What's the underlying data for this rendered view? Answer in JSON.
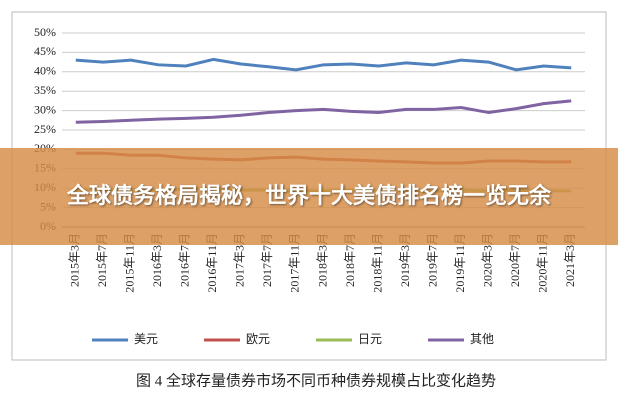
{
  "chart_data": {
    "type": "line",
    "categories": [
      "2015年3月",
      "2015年7月",
      "2015年11月",
      "2016年3月",
      "2016年7月",
      "2016年11月",
      "2017年3月",
      "2017年7月",
      "2017年11月",
      "2018年3月",
      "2018年7月",
      "2018年11月",
      "2019年3月",
      "2019年7月",
      "2019年11月",
      "2020年3月",
      "2020年7月",
      "2020年11月",
      "2021年3月"
    ],
    "series": [
      {
        "name": "美元",
        "color": "#4f81bd",
        "values": [
          43,
          42.5,
          43,
          41.8,
          41.5,
          43.2,
          42,
          41.3,
          40.5,
          41.8,
          42,
          41.5,
          42.3,
          41.8,
          43,
          42.5,
          40.5,
          41.5,
          41
        ]
      },
      {
        "name": "欧元",
        "color": "#c0504d",
        "values": [
          19,
          19,
          18.5,
          18.5,
          17.8,
          17.5,
          17.3,
          17.8,
          18,
          17.5,
          17.3,
          17,
          16.8,
          16.5,
          16.5,
          17,
          17,
          16.8,
          16.8
        ]
      },
      {
        "name": "日元",
        "color": "#9bbb59",
        "values": [
          9.5,
          9.8,
          9.5,
          9.5,
          9.8,
          9.8,
          9.5,
          9.5,
          9.3,
          9.3,
          9.5,
          9.3,
          9.2,
          9.2,
          9.5,
          9.3,
          9.5,
          9.3,
          9.3
        ]
      },
      {
        "name": "其他",
        "color": "#8064a2",
        "values": [
          27,
          27.2,
          27.5,
          27.8,
          28,
          28.3,
          28.8,
          29.5,
          30,
          30.3,
          29.8,
          29.5,
          30.3,
          30.3,
          30.8,
          29.5,
          30.5,
          31.8,
          32.5
        ]
      }
    ],
    "ylim": [
      0,
      50
    ],
    "yticks": [
      {
        "value": 0,
        "label": "0%"
      },
      {
        "value": 5,
        "label": "5%"
      },
      {
        "value": 10,
        "label": "10%"
      },
      {
        "value": 15,
        "label": "15%"
      },
      {
        "value": 20,
        "label": "20%"
      },
      {
        "value": 25,
        "label": "25%"
      },
      {
        "value": 30,
        "label": "30%"
      },
      {
        "value": 35,
        "label": "35%"
      },
      {
        "value": 40,
        "label": "40%"
      },
      {
        "value": 45,
        "label": "45%"
      },
      {
        "value": 50,
        "label": "50%"
      }
    ],
    "grid": true
  },
  "caption": "图 4  全球存量债券市场不同币种债券规模占比变化趋势",
  "banner_title": "全球债务格局揭秘，世界十大美债排名榜一览无余"
}
